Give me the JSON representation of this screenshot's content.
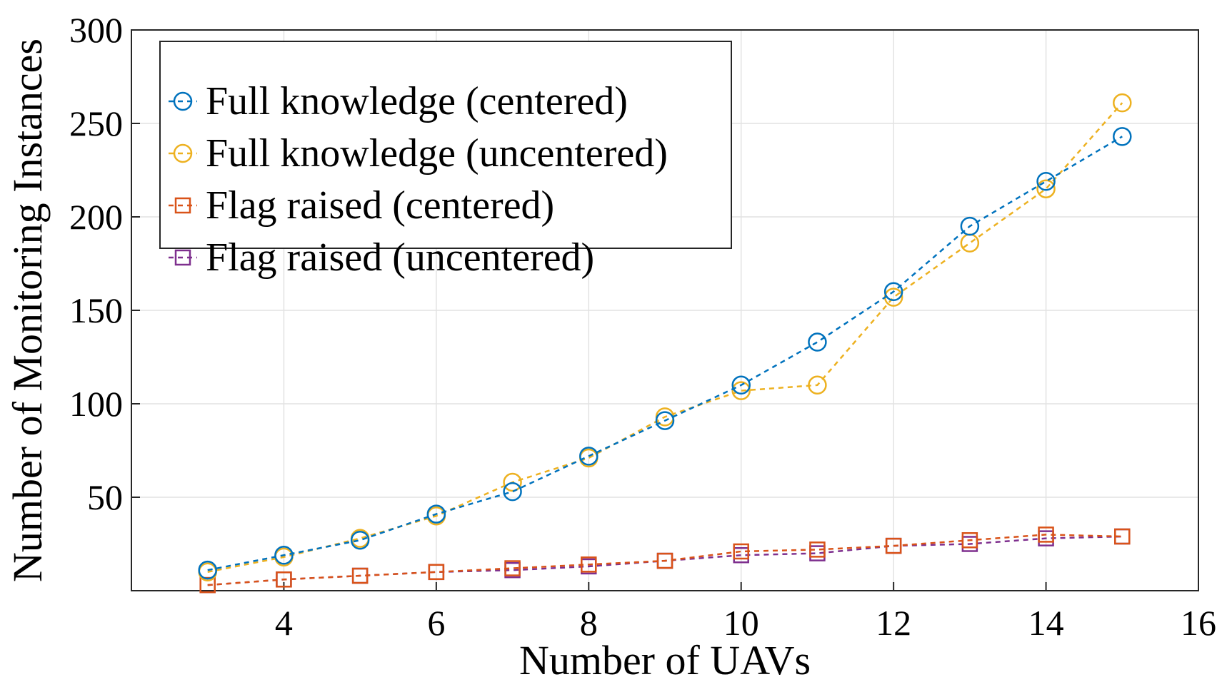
{
  "chart_data": {
    "type": "line",
    "title": "",
    "xlabel": "Number of UAVs",
    "ylabel": "Number of Monitoring Instances",
    "xlim": [
      2,
      16
    ],
    "ylim": [
      0,
      300
    ],
    "xticks": [
      4,
      6,
      8,
      10,
      12,
      14,
      16
    ],
    "yticks": [
      50,
      100,
      150,
      200,
      250,
      300
    ],
    "grid": true,
    "legend_position": "top-left",
    "x": [
      3,
      4,
      5,
      6,
      7,
      8,
      9,
      10,
      11,
      12,
      13,
      14,
      15
    ],
    "series": [
      {
        "name": "Full knowledge (centered)",
        "color": "#0072BD",
        "marker": "circle",
        "values": [
          11,
          19,
          27,
          41,
          53,
          72,
          91,
          110,
          133,
          160,
          195,
          219,
          243
        ]
      },
      {
        "name": "Full knowledge (uncentered)",
        "color": "#EDB120",
        "marker": "circle",
        "values": [
          10,
          18,
          28,
          40,
          58,
          71,
          93,
          107,
          110,
          157,
          186,
          215,
          261
        ]
      },
      {
        "name": "Flag raised (centered)",
        "color": "#D95319",
        "marker": "square",
        "values": [
          3,
          6,
          8,
          10,
          12,
          14,
          16,
          21,
          22,
          24,
          27,
          30,
          29
        ]
      },
      {
        "name": "Flag raised (uncentered)",
        "color": "#7E2F8E",
        "marker": "square",
        "values": [
          3,
          6,
          8,
          10,
          11,
          13,
          16,
          19,
          20,
          24,
          25,
          28,
          29
        ]
      }
    ]
  }
}
